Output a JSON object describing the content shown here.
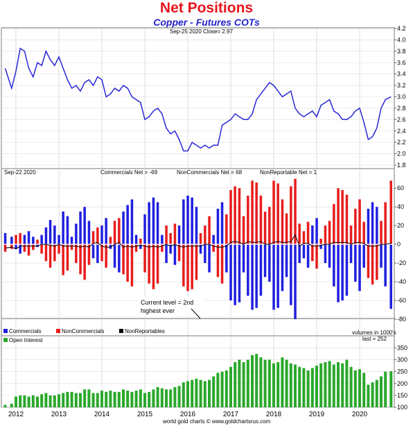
{
  "page": {
    "title": "Net Positions",
    "subtitle": "Copper - Futures COTs",
    "footer": "world gold charts © www.goldchartsrus.com"
  },
  "colors": {
    "title": "#e8141b",
    "subtitle": "#2323c8",
    "price_line": "#2727d6",
    "commercials": "#1f1fe0",
    "noncommercials": "#e81c1c",
    "nonreportables": "#000000",
    "open_interest": "#2aa82a"
  },
  "chart_data": [
    {
      "type": "line",
      "panel": "price",
      "header": "Sep-25  2020  Close= 2.97",
      "x_labels": [
        "2012",
        "2013",
        "2014",
        "2015",
        "2016",
        "2017",
        "2018",
        "2019",
        "2020"
      ],
      "y_ticks": [
        "1.8",
        "2.0",
        "2.2",
        "2.4",
        "2.6",
        "2.8",
        "3.0",
        "3.2",
        "3.4",
        "3.6",
        "3.8",
        "4.0",
        "4.2"
      ],
      "ylim": [
        1.8,
        4.2
      ],
      "series": [
        {
          "x": [
            2011.75,
            2011.9,
            2012.0,
            2012.1,
            2012.2,
            2012.3,
            2012.4,
            2012.5,
            2012.6,
            2012.7,
            2012.8,
            2012.9,
            2013.0,
            2013.1,
            2013.2,
            2013.3,
            2013.4,
            2013.5,
            2013.6,
            2013.7,
            2013.8,
            2013.9,
            2014.0,
            2014.1,
            2014.2,
            2014.3,
            2014.4,
            2014.5,
            2014.6,
            2014.7,
            2014.8,
            2014.9,
            2015.0,
            2015.1,
            2015.2,
            2015.3,
            2015.4,
            2015.5,
            2015.6,
            2015.7,
            2015.8,
            2015.9,
            2016.0,
            2016.1,
            2016.2,
            2016.3,
            2016.4,
            2016.5,
            2016.6,
            2016.7,
            2016.8,
            2016.9,
            2017.0,
            2017.1,
            2017.2,
            2017.3,
            2017.4,
            2017.5,
            2017.6,
            2017.7,
            2017.8,
            2017.9,
            2018.0,
            2018.1,
            2018.2,
            2018.3,
            2018.4,
            2018.5,
            2018.6,
            2018.7,
            2018.8,
            2018.9,
            2019.0,
            2019.1,
            2019.2,
            2019.3,
            2019.4,
            2019.5,
            2019.6,
            2019.7,
            2019.8,
            2019.9,
            2020.0,
            2020.1,
            2020.2,
            2020.3,
            2020.4,
            2020.5,
            2020.6,
            2020.73
          ],
          "values": [
            3.5,
            3.15,
            3.45,
            3.85,
            3.8,
            3.5,
            3.35,
            3.6,
            3.55,
            3.8,
            3.65,
            3.55,
            3.7,
            3.5,
            3.3,
            3.15,
            3.2,
            3.1,
            3.25,
            3.3,
            3.2,
            3.35,
            3.3,
            3.0,
            3.05,
            3.15,
            3.1,
            3.2,
            3.15,
            3.0,
            2.95,
            2.9,
            2.6,
            2.65,
            2.75,
            2.8,
            2.7,
            2.45,
            2.35,
            2.4,
            2.25,
            2.05,
            2.05,
            2.2,
            2.15,
            2.1,
            2.15,
            2.1,
            2.15,
            2.15,
            2.5,
            2.55,
            2.6,
            2.7,
            2.65,
            2.6,
            2.6,
            2.7,
            2.95,
            3.05,
            3.15,
            3.25,
            3.2,
            3.1,
            3.0,
            3.05,
            3.1,
            2.8,
            2.7,
            2.65,
            2.7,
            2.75,
            2.65,
            2.85,
            2.9,
            2.95,
            2.75,
            2.7,
            2.6,
            2.6,
            2.65,
            2.75,
            2.8,
            2.55,
            2.25,
            2.3,
            2.45,
            2.8,
            2.95,
            3.0
          ]
        }
      ]
    },
    {
      "type": "bar",
      "panel": "net_positions",
      "header_date": "Sep-22  2020",
      "header_commercials": "Commercials Net = -69",
      "header_noncommercials": "NonCommercials Net = 68",
      "header_nonreportables": "NonReportable Net = 1",
      "y_ticks": [
        "-80",
        "-60",
        "-40",
        "-20",
        "0",
        "20",
        "40",
        "60"
      ],
      "ylim": [
        -80,
        72
      ],
      "annotation_line1": "Current level = 2nd",
      "annotation_line2": "highest ever",
      "legend": [
        "Commercials",
        "NonCommercials",
        "NonReportables"
      ],
      "unit_note": "volumes in 1000's",
      "x": [
        2011.75,
        2011.9,
        2012.0,
        2012.1,
        2012.2,
        2012.3,
        2012.4,
        2012.5,
        2012.6,
        2012.7,
        2012.8,
        2012.9,
        2013.0,
        2013.1,
        2013.2,
        2013.3,
        2013.4,
        2013.5,
        2013.6,
        2013.7,
        2013.8,
        2013.9,
        2014.0,
        2014.1,
        2014.2,
        2014.3,
        2014.4,
        2014.5,
        2014.6,
        2014.7,
        2014.8,
        2014.9,
        2015.0,
        2015.1,
        2015.2,
        2015.3,
        2015.4,
        2015.5,
        2015.6,
        2015.7,
        2015.8,
        2015.9,
        2016.0,
        2016.1,
        2016.2,
        2016.3,
        2016.4,
        2016.5,
        2016.6,
        2016.7,
        2016.8,
        2016.9,
        2017.0,
        2017.1,
        2017.2,
        2017.3,
        2017.4,
        2017.5,
        2017.6,
        2017.7,
        2017.8,
        2017.9,
        2018.0,
        2018.1,
        2018.2,
        2018.3,
        2018.4,
        2018.5,
        2018.6,
        2018.7,
        2018.8,
        2018.9,
        2019.0,
        2019.1,
        2019.2,
        2019.3,
        2019.4,
        2019.5,
        2019.6,
        2019.7,
        2019.8,
        2019.9,
        2020.0,
        2020.1,
        2020.2,
        2020.3,
        2020.4,
        2020.5,
        2020.6,
        2020.73
      ],
      "series": [
        {
          "name": "Commercials",
          "values": [
            12,
            8,
            -5,
            -10,
            10,
            14,
            8,
            -3,
            10,
            18,
            26,
            20,
            10,
            35,
            30,
            8,
            22,
            35,
            40,
            25,
            -15,
            -20,
            20,
            28,
            -5,
            -25,
            -30,
            35,
            42,
            48,
            10,
            -5,
            32,
            45,
            50,
            45,
            10,
            -20,
            -10,
            -22,
            20,
            48,
            52,
            50,
            40,
            -10,
            -20,
            -30,
            10,
            38,
            45,
            -30,
            -60,
            -65,
            -62,
            -30,
            -55,
            -70,
            -68,
            -55,
            -35,
            -40,
            -70,
            -68,
            -50,
            -35,
            -65,
            -80,
            -20,
            -15,
            -25,
            20,
            28,
            -5,
            -20,
            -25,
            -45,
            -62,
            -60,
            -55,
            -20,
            -40,
            -50,
            -25,
            38,
            45,
            40,
            -25,
            -45,
            -69
          ],
          "color": "#1f1fe0"
        },
        {
          "name": "NonCommercials",
          "values": [
            -8,
            -5,
            10,
            12,
            -8,
            -12,
            -6,
            5,
            -10,
            -18,
            -25,
            -18,
            -10,
            -33,
            -28,
            -6,
            -20,
            -32,
            -38,
            -22,
            14,
            18,
            -18,
            -25,
            8,
            25,
            28,
            -32,
            -40,
            -45,
            -8,
            6,
            -30,
            -42,
            -48,
            -42,
            -8,
            20,
            12,
            22,
            -18,
            -45,
            -50,
            -48,
            -38,
            12,
            20,
            30,
            -8,
            -35,
            -42,
            32,
            58,
            62,
            60,
            30,
            52,
            68,
            66,
            52,
            35,
            40,
            68,
            65,
            48,
            33,
            62,
            70,
            22,
            14,
            24,
            -18,
            -26,
            6,
            20,
            25,
            43,
            60,
            58,
            53,
            20,
            38,
            48,
            24,
            -36,
            -43,
            -38,
            25,
            45,
            68
          ],
          "color": "#e81c1c"
        },
        {
          "name": "NonReportables",
          "values": [
            -4,
            -3,
            -5,
            -2,
            -2,
            -2,
            -2,
            -2,
            0,
            0,
            -1,
            -2,
            0,
            -2,
            -2,
            -2,
            -2,
            -3,
            -2,
            -3,
            1,
            2,
            -2,
            -3,
            -3,
            0,
            2,
            -3,
            -2,
            -3,
            -2,
            -1,
            -2,
            -3,
            -2,
            -3,
            -2,
            0,
            -2,
            0,
            -2,
            -3,
            -2,
            -2,
            -2,
            -2,
            0,
            0,
            -2,
            -3,
            -3,
            -2,
            2,
            3,
            2,
            0,
            3,
            2,
            2,
            3,
            0,
            0,
            2,
            3,
            2,
            2,
            3,
            10,
            -2,
            1,
            1,
            -2,
            -2,
            -1,
            0,
            0,
            2,
            2,
            2,
            2,
            0,
            2,
            2,
            1,
            -2,
            -2,
            -2,
            0,
            0,
            1
          ],
          "color": "#000000"
        }
      ]
    },
    {
      "type": "bar",
      "panel": "open_interest",
      "legend": [
        "Open Interest"
      ],
      "last_note": "last = 252",
      "y_ticks": [
        "100",
        "150",
        "200",
        "250",
        "300",
        "350"
      ],
      "ylim": [
        100,
        360
      ],
      "x": [
        2011.75,
        2011.9,
        2012.0,
        2012.1,
        2012.2,
        2012.3,
        2012.4,
        2012.5,
        2012.6,
        2012.7,
        2012.8,
        2012.9,
        2013.0,
        2013.1,
        2013.2,
        2013.3,
        2013.4,
        2013.5,
        2013.6,
        2013.7,
        2013.8,
        2013.9,
        2014.0,
        2014.1,
        2014.2,
        2014.3,
        2014.4,
        2014.5,
        2014.6,
        2014.7,
        2014.8,
        2014.9,
        2015.0,
        2015.1,
        2015.2,
        2015.3,
        2015.4,
        2015.5,
        2015.6,
        2015.7,
        2015.8,
        2015.9,
        2016.0,
        2016.1,
        2016.2,
        2016.3,
        2016.4,
        2016.5,
        2016.6,
        2016.7,
        2016.8,
        2016.9,
        2017.0,
        2017.1,
        2017.2,
        2017.3,
        2017.4,
        2017.5,
        2017.6,
        2017.7,
        2017.8,
        2017.9,
        2018.0,
        2018.1,
        2018.2,
        2018.3,
        2018.4,
        2018.5,
        2018.6,
        2018.7,
        2018.8,
        2018.9,
        2019.0,
        2019.1,
        2019.2,
        2019.3,
        2019.4,
        2019.5,
        2019.6,
        2019.7,
        2019.8,
        2019.9,
        2020.0,
        2020.1,
        2020.2,
        2020.3,
        2020.4,
        2020.5,
        2020.6,
        2020.73
      ],
      "values": [
        110,
        115,
        145,
        150,
        150,
        145,
        150,
        145,
        155,
        160,
        150,
        150,
        155,
        160,
        165,
        165,
        160,
        160,
        175,
        175,
        160,
        160,
        170,
        165,
        170,
        165,
        165,
        175,
        170,
        165,
        170,
        175,
        160,
        165,
        175,
        185,
        180,
        175,
        175,
        185,
        190,
        205,
        210,
        215,
        220,
        215,
        210,
        215,
        230,
        245,
        250,
        255,
        270,
        290,
        300,
        290,
        300,
        320,
        325,
        310,
        300,
        300,
        285,
        290,
        310,
        300,
        285,
        280,
        270,
        265,
        255,
        265,
        275,
        285,
        290,
        295,
        280,
        290,
        285,
        300,
        270,
        255,
        260,
        245,
        195,
        205,
        215,
        230,
        250,
        252
      ],
      "color": "#2aa82a"
    }
  ]
}
